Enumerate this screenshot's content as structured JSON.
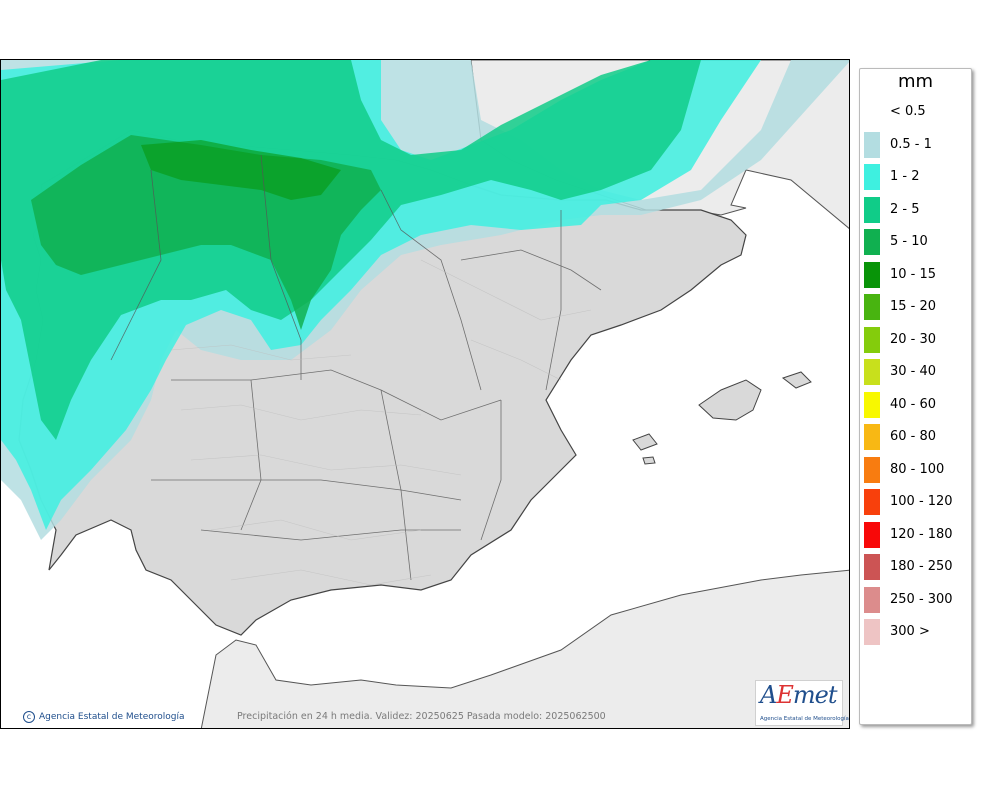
{
  "legend": {
    "unit": "mm",
    "classes": [
      {
        "label": "< 0.5",
        "color": "#ffffff"
      },
      {
        "label": "0.5 - 1",
        "color": "#b3dde1"
      },
      {
        "label": "1 - 2",
        "color": "#3ef0e0"
      },
      {
        "label": "2 - 5",
        "color": "#10cc88"
      },
      {
        "label": "5 - 10",
        "color": "#10b050"
      },
      {
        "label": "10 - 15",
        "color": "#089408"
      },
      {
        "label": "15 - 20",
        "color": "#48b410"
      },
      {
        "label": "20 - 30",
        "color": "#84cc0c"
      },
      {
        "label": "30 - 40",
        "color": "#c8e01c"
      },
      {
        "label": "40 - 60",
        "color": "#f8f800"
      },
      {
        "label": "60 - 80",
        "color": "#f8b814"
      },
      {
        "label": "80 - 100",
        "color": "#f87c10"
      },
      {
        "label": "100 - 120",
        "color": "#f8400c"
      },
      {
        "label": "120 - 180",
        "color": "#f80808"
      },
      {
        "label": "180 - 250",
        "color": "#cc5454"
      },
      {
        "label": "250 - 300",
        "color": "#dc8c8c"
      },
      {
        "label": "300 >",
        "color": "#eec4c4"
      }
    ]
  },
  "map": {
    "caption": "Precipitación en 24 h media. Validez: 20250625 Pasada modelo: 2025062500",
    "credit": "Agencia Estatal de Meteorología",
    "copyright_symbol": "c",
    "logo": {
      "word_a": "A",
      "word_e": "E",
      "word_rest": "met",
      "subtitle": "Agencia Estatal de Meteorología"
    },
    "colors": {
      "sea": "#ffffff",
      "land": "#d9d9d9",
      "relief": "#c4c4c4",
      "border": "#3a3a3a",
      "foreign_land": "#ececec"
    }
  }
}
